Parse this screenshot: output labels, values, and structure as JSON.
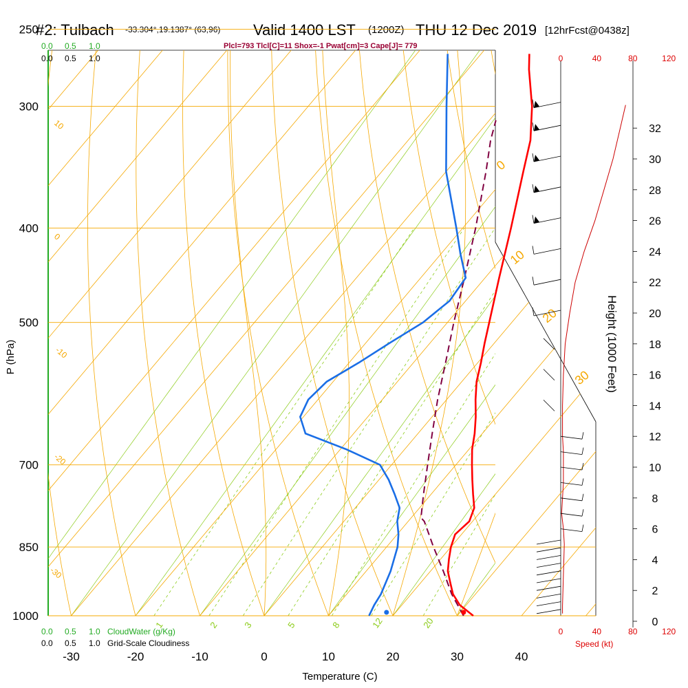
{
  "header": {
    "station": "#2: Tulbach",
    "coords": "-33.304°,19.1387° (63,96)",
    "valid": "Valid 1400 LST",
    "utc": "(1200Z)",
    "date": "THU 12 Dec 2019",
    "fcst": "[12hrFcst@0438z]",
    "params": "Plcl=793 Tlcl[C]=11 Shox=-1 Pwat[cm]=3 Cape[J]= 779"
  },
  "labels": {
    "ylabel": "P (hPa)",
    "xlabel": "Temperature (C)",
    "height_label": "Height (1000 Feet)",
    "speed_label": "Speed (kt)",
    "cloudwater_label": "CloudWater (g/Kg)",
    "cloudiness_label": "Grid-Scale Cloudiness",
    "cw_ticks": [
      "0.0",
      "0.5",
      "1.0"
    ],
    "cl_ticks": [
      "0.0",
      "0.5",
      "1.0"
    ]
  },
  "colors": {
    "temperature": "#ff0000",
    "dewpoint": "#1a6ee6",
    "parcel": "#800040",
    "isotherm": "#f5a800",
    "mixing_ratio": "#8ccc1a",
    "adiabat": "#f5a800",
    "cloudwater": "#22aa22",
    "windspeed": "#cc0000"
  },
  "chart_data": {
    "type": "skew-t",
    "pressure_axis": {
      "ticks": [
        250,
        300,
        400,
        500,
        700,
        850,
        1000
      ],
      "range": [
        250,
        1000
      ],
      "scale": "log"
    },
    "temperature_axis": {
      "ticks": [
        -30,
        -20,
        -10,
        0,
        10,
        20,
        30,
        40
      ],
      "range": [
        -34,
        35
      ]
    },
    "height_axis": {
      "ticks": [
        0,
        2,
        4,
        6,
        8,
        10,
        12,
        14,
        16,
        18,
        20,
        22,
        24,
        26,
        28,
        30,
        32
      ]
    },
    "speed_axis": {
      "ticks": [
        0,
        40,
        80,
        120
      ]
    },
    "dry_adiabat_labels": [
      "-30",
      "-20",
      "-10",
      "0",
      "10",
      "20",
      "30",
      "10",
      "0"
    ],
    "moist_adiabat_labels": [
      "0",
      "10",
      "20",
      "30"
    ],
    "mixing_ratio_labels": [
      "1",
      "2",
      "3",
      "5",
      "8",
      "12",
      "20"
    ],
    "temperature_profile": [
      {
        "p": 1000,
        "t": 32.5
      },
      {
        "p": 975,
        "t": 29.0
      },
      {
        "p": 950,
        "t": 26.5
      },
      {
        "p": 925,
        "t": 24.6
      },
      {
        "p": 900,
        "t": 22.7
      },
      {
        "p": 875,
        "t": 21.3
      },
      {
        "p": 850,
        "t": 20.0
      },
      {
        "p": 825,
        "t": 19.0
      },
      {
        "p": 800,
        "t": 19.5
      },
      {
        "p": 775,
        "t": 18.5
      },
      {
        "p": 750,
        "t": 16.5
      },
      {
        "p": 725,
        "t": 14.5
      },
      {
        "p": 700,
        "t": 12.5
      },
      {
        "p": 675,
        "t": 10.5
      },
      {
        "p": 650,
        "t": 8.8
      },
      {
        "p": 625,
        "t": 6.8
      },
      {
        "p": 600,
        "t": 4.5
      },
      {
        "p": 575,
        "t": 2.3
      },
      {
        "p": 550,
        "t": 0.5
      },
      {
        "p": 525,
        "t": -1.5
      },
      {
        "p": 500,
        "t": -3.5
      },
      {
        "p": 450,
        "t": -7.8
      },
      {
        "p": 400,
        "t": -12.5
      },
      {
        "p": 350,
        "t": -18.0
      },
      {
        "p": 325,
        "t": -21.0
      },
      {
        "p": 300,
        "t": -25.2
      },
      {
        "p": 275,
        "t": -30.5
      },
      {
        "p": 265,
        "t": -32.5
      }
    ],
    "dewpoint_profile": [
      {
        "p": 1000,
        "t": 16.3
      },
      {
        "p": 975,
        "t": 15.7
      },
      {
        "p": 950,
        "t": 15.3
      },
      {
        "p": 900,
        "t": 13.8
      },
      {
        "p": 850,
        "t": 11.7
      },
      {
        "p": 825,
        "t": 10.2
      },
      {
        "p": 800,
        "t": 8.3
      },
      {
        "p": 775,
        "t": 6.9
      },
      {
        "p": 750,
        "t": 4.3
      },
      {
        "p": 725,
        "t": 1.5
      },
      {
        "p": 700,
        "t": -1.8
      },
      {
        "p": 675,
        "t": -9.0
      },
      {
        "p": 650,
        "t": -17.5
      },
      {
        "p": 625,
        "t": -20.5
      },
      {
        "p": 600,
        "t": -21.5
      },
      {
        "p": 575,
        "t": -21.0
      },
      {
        "p": 550,
        "t": -18.5
      },
      {
        "p": 525,
        "t": -16.3
      },
      {
        "p": 500,
        "t": -13.8
      },
      {
        "p": 475,
        "t": -12.5
      },
      {
        "p": 450,
        "t": -13.0
      },
      {
        "p": 425,
        "t": -17.0
      },
      {
        "p": 400,
        "t": -21.0
      },
      {
        "p": 350,
        "t": -30.0
      },
      {
        "p": 300,
        "t": -38.5
      },
      {
        "p": 265,
        "t": -45.2
      }
    ],
    "parcel_profile": [
      {
        "p": 1000,
        "t": 31.0
      },
      {
        "p": 950,
        "t": 26.3
      },
      {
        "p": 900,
        "t": 22.0
      },
      {
        "p": 850,
        "t": 17.3
      },
      {
        "p": 800,
        "t": 12.5
      },
      {
        "p": 793,
        "t": 11.5
      },
      {
        "p": 750,
        "t": 8.8
      },
      {
        "p": 700,
        "t": 5.6
      },
      {
        "p": 650,
        "t": 2.2
      },
      {
        "p": 600,
        "t": -1.4
      },
      {
        "p": 550,
        "t": -5.0
      },
      {
        "p": 500,
        "t": -9.0
      },
      {
        "p": 450,
        "t": -13.2
      },
      {
        "p": 400,
        "t": -18.0
      },
      {
        "p": 350,
        "t": -23.8
      },
      {
        "p": 325,
        "t": -27.2
      },
      {
        "p": 310,
        "t": -29.0
      }
    ],
    "surface_markers": {
      "temperature": 33.3,
      "dewpoint": 18.8
    },
    "wind_speed_profile": [
      {
        "h": 0.5,
        "s": 2
      },
      {
        "h": 1,
        "s": 2
      },
      {
        "h": 3,
        "s": 3
      },
      {
        "h": 5,
        "s": 4
      },
      {
        "h": 6,
        "s": 3
      },
      {
        "h": 7,
        "s": 1
      },
      {
        "h": 8,
        "s": 2
      },
      {
        "h": 9,
        "s": 3
      },
      {
        "h": 10,
        "s": 3
      },
      {
        "h": 11,
        "s": 3
      },
      {
        "h": 12,
        "s": 2
      },
      {
        "h": 14,
        "s": 2
      },
      {
        "h": 16,
        "s": 3
      },
      {
        "h": 18,
        "s": 5
      },
      {
        "h": 20,
        "s": 10
      },
      {
        "h": 22,
        "s": 16
      },
      {
        "h": 24,
        "s": 26
      },
      {
        "h": 26,
        "s": 38
      },
      {
        "h": 28,
        "s": 48
      },
      {
        "h": 30,
        "s": 58
      },
      {
        "h": 32,
        "s": 66
      },
      {
        "h": 33.5,
        "s": 72
      }
    ],
    "wind_barb_heights": [
      0.5,
      1,
      1.5,
      2,
      2.5,
      3,
      3.5,
      4,
      4.5,
      5,
      6,
      7,
      8,
      9,
      10,
      11,
      12,
      14,
      16,
      18,
      20,
      22,
      24,
      26,
      28,
      30,
      32,
      33.5
    ]
  }
}
